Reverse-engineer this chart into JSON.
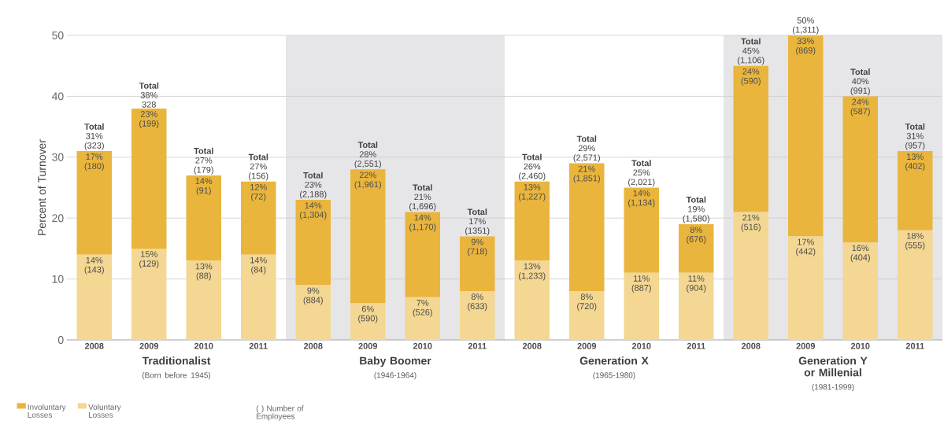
{
  "chart_data": {
    "type": "bar",
    "stacked": true,
    "ylabel": "Percent of Turnover",
    "categories": [
      "2008",
      "2009",
      "2010",
      "2011",
      "2008",
      "2009",
      "2010",
      "2011",
      "2008",
      "2009",
      "2010",
      "2011",
      "2008",
      "2009",
      "2010",
      "2011"
    ],
    "series": [
      {
        "name": "Voluntary Losses",
        "color": "#f3d792",
        "values": [
          14,
          15,
          13,
          14,
          9,
          6,
          7,
          8,
          13,
          8,
          11,
          11,
          21,
          17,
          16,
          18
        ],
        "value_labels": [
          "14% (143)",
          "15% (129)",
          "13% (88)",
          "14% (84)",
          "9% (884)",
          "6% (590)",
          "7% (526)",
          "8% (633)",
          "13% (1,233)",
          "8% (720)",
          "11% (887)",
          "11% (904)",
          "21% (516)",
          "17% (442)",
          "16% (404)",
          "18% (555)"
        ]
      },
      {
        "name": "Involuntary Losses",
        "color": "#e9b53c",
        "values": [
          17,
          23,
          14,
          12,
          14,
          22,
          14,
          9,
          13,
          21,
          14,
          8,
          24,
          33,
          24,
          13
        ],
        "value_labels": [
          "17% (180)",
          "23% (199)",
          "14% (91)",
          "12% (72)",
          "14% (1,304)",
          "22% (1,961)",
          "14% (1,170)",
          "9% (718)",
          "13% (1,227)",
          "21% (1,851)",
          "14% (1,134)",
          "8% (676)",
          "24% (590)",
          "33% (869)",
          "24% (587)",
          "13% (402)"
        ]
      }
    ],
    "totals": [
      "**Total** 31% (323)",
      "**Total** 38% 328",
      "**Total** 27% (179)",
      "**Total** 27% (156)",
      "**Total** 23% (2,188)",
      "**Total** 28% (2,551)",
      "**Total** 21% (1,696)",
      "**Total** 17% (1351)",
      "**Total** 26% (2,460)",
      "**Total** 29% (2,571)",
      "**Total** 25% (2,021)",
      "**Total** 19% (1,580)",
      "**Total** 45% (1,106)",
      "50% (1,311)",
      "**Total** 40% (991)",
      "**Total** 31% (957)"
    ],
    "ylim": [
      0,
      50
    ],
    "yticks": [
      0,
      10,
      20,
      30,
      40,
      50
    ],
    "grid": "y",
    "legend": "bottom left",
    "annotations": [
      "Traditionalist",
      "(Born before 1945)",
      "Baby Boomer",
      "(1946-1964)",
      "Generation X",
      "(1965-1980)",
      "Generation Y or Millenial",
      "(1981-1999)",
      "( ) Number of Employees"
    ]
  }
}
